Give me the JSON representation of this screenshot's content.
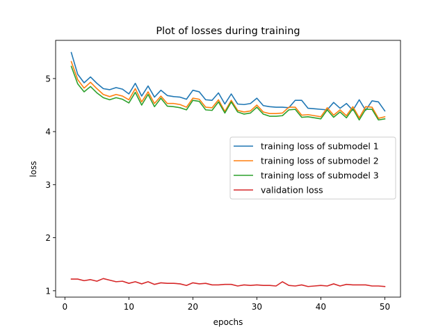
{
  "chart_data": {
    "type": "line",
    "title": "Plot of losses during training",
    "xlabel": "epochs",
    "ylabel": "loss",
    "xlim": [
      -1.45,
      52.45
    ],
    "ylim": [
      0.88,
      5.72
    ],
    "xticks": [
      0,
      10,
      20,
      30,
      40,
      50
    ],
    "yticks": [
      1,
      2,
      3,
      4,
      5
    ],
    "grid": false,
    "legend_position": "center-right",
    "x": [
      1,
      2,
      3,
      4,
      5,
      6,
      7,
      8,
      9,
      10,
      11,
      12,
      13,
      14,
      15,
      16,
      17,
      18,
      19,
      20,
      21,
      22,
      23,
      24,
      25,
      26,
      27,
      28,
      29,
      30,
      31,
      32,
      33,
      34,
      35,
      36,
      37,
      38,
      39,
      40,
      41,
      42,
      43,
      44,
      45,
      46,
      47,
      48,
      49,
      50
    ],
    "series": [
      {
        "name": "training loss of submodel 1",
        "color": "#1f77b4",
        "values": [
          5.49,
          5.08,
          4.92,
          5.03,
          4.91,
          4.81,
          4.79,
          4.83,
          4.8,
          4.71,
          4.91,
          4.67,
          4.86,
          4.65,
          4.78,
          4.68,
          4.66,
          4.65,
          4.61,
          4.78,
          4.75,
          4.6,
          4.59,
          4.73,
          4.52,
          4.71,
          4.52,
          4.51,
          4.53,
          4.63,
          4.49,
          4.47,
          4.46,
          4.46,
          4.45,
          4.59,
          4.59,
          4.44,
          4.43,
          4.42,
          4.41,
          4.55,
          4.44,
          4.53,
          4.4,
          4.6,
          4.4,
          4.58,
          4.56,
          4.39
        ]
      },
      {
        "name": "training loss of submodel 2",
        "color": "#ff7f0e",
        "values": [
          5.32,
          4.98,
          4.82,
          4.93,
          4.81,
          4.7,
          4.66,
          4.7,
          4.67,
          4.6,
          4.81,
          4.56,
          4.75,
          4.53,
          4.67,
          4.53,
          4.53,
          4.51,
          4.46,
          4.63,
          4.61,
          4.46,
          4.45,
          4.6,
          4.38,
          4.59,
          4.4,
          4.37,
          4.39,
          4.5,
          4.37,
          4.34,
          4.34,
          4.35,
          4.46,
          4.46,
          4.31,
          4.32,
          4.3,
          4.28,
          4.45,
          4.31,
          4.41,
          4.3,
          4.47,
          4.26,
          4.47,
          4.46,
          4.25,
          4.28
        ]
      },
      {
        "name": "training loss of submodel 3",
        "color": "#2ca02c",
        "values": [
          5.23,
          4.9,
          4.75,
          4.85,
          4.73,
          4.64,
          4.6,
          4.64,
          4.61,
          4.54,
          4.74,
          4.5,
          4.7,
          4.47,
          4.63,
          4.48,
          4.47,
          4.45,
          4.41,
          4.59,
          4.57,
          4.41,
          4.4,
          4.56,
          4.35,
          4.56,
          4.37,
          4.33,
          4.35,
          4.46,
          4.33,
          4.29,
          4.29,
          4.3,
          4.41,
          4.42,
          4.27,
          4.28,
          4.26,
          4.24,
          4.41,
          4.27,
          4.37,
          4.26,
          4.43,
          4.22,
          4.42,
          4.42,
          4.22,
          4.24
        ]
      },
      {
        "name": "validation loss",
        "color": "#d62728",
        "values": [
          1.22,
          1.22,
          1.19,
          1.21,
          1.18,
          1.23,
          1.2,
          1.17,
          1.18,
          1.14,
          1.17,
          1.13,
          1.17,
          1.12,
          1.15,
          1.14,
          1.14,
          1.13,
          1.1,
          1.15,
          1.13,
          1.14,
          1.11,
          1.11,
          1.12,
          1.12,
          1.09,
          1.11,
          1.1,
          1.11,
          1.1,
          1.1,
          1.09,
          1.17,
          1.1,
          1.09,
          1.11,
          1.08,
          1.09,
          1.1,
          1.09,
          1.13,
          1.09,
          1.12,
          1.11,
          1.11,
          1.11,
          1.09,
          1.09,
          1.08
        ]
      }
    ]
  }
}
